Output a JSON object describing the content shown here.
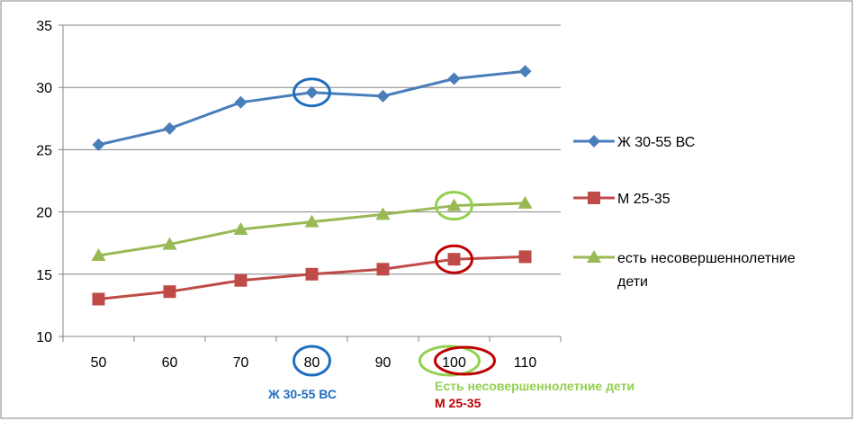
{
  "chart_data": {
    "type": "line",
    "title": "",
    "xlabel": "",
    "ylabel": "",
    "x": [
      50,
      60,
      70,
      80,
      90,
      100,
      110
    ],
    "ylim": [
      10,
      35
    ],
    "yticks": [
      10,
      15,
      20,
      25,
      30,
      35
    ],
    "grid": "horizontal",
    "legend_position": "right",
    "series": [
      {
        "name": "Ж 30-55 ВС",
        "color": "#4a7ebb",
        "marker": "diamond",
        "values": [
          25.4,
          26.7,
          28.8,
          29.6,
          29.3,
          30.7,
          31.3
        ]
      },
      {
        "name": "М 25-35",
        "color": "#be4b48",
        "marker": "square",
        "values": [
          13.0,
          13.6,
          14.5,
          15.0,
          15.4,
          16.2,
          16.4
        ]
      },
      {
        "name": "есть несовершеннолетние дети",
        "color": "#98b954",
        "marker": "triangle",
        "values": [
          16.5,
          17.4,
          18.6,
          19.2,
          19.8,
          20.5,
          20.7
        ]
      }
    ],
    "legend_lines": [
      [
        "Ж 30-55 ВС"
      ],
      [
        "М 25-35"
      ],
      [
        "есть несовершеннолетние",
        "дети"
      ]
    ],
    "annotations": {
      "highlight_colors": {
        "blue": "#1f6fbf",
        "green": "#92d050",
        "red": "#c00000"
      },
      "highlights": [
        {
          "x": 80,
          "series": 0,
          "color": "#1f6fbf"
        },
        {
          "x": 100,
          "series": 2,
          "color": "#92d050"
        },
        {
          "x": 100,
          "series": 1,
          "color": "#c00000"
        }
      ],
      "axis_highlights": [
        {
          "x": 80,
          "color": "#1f6fbf"
        },
        {
          "x": 100,
          "color": "#92d050"
        },
        {
          "x": 100,
          "color": "#c00000"
        }
      ],
      "notes": [
        {
          "text": "Ж 30-55 ВС",
          "color": "#1f6fbf"
        },
        {
          "text": "Есть несовершеннолетние дети",
          "color": "#92d050"
        },
        {
          "text": "М 25-35",
          "color": "#c00000"
        }
      ]
    }
  }
}
